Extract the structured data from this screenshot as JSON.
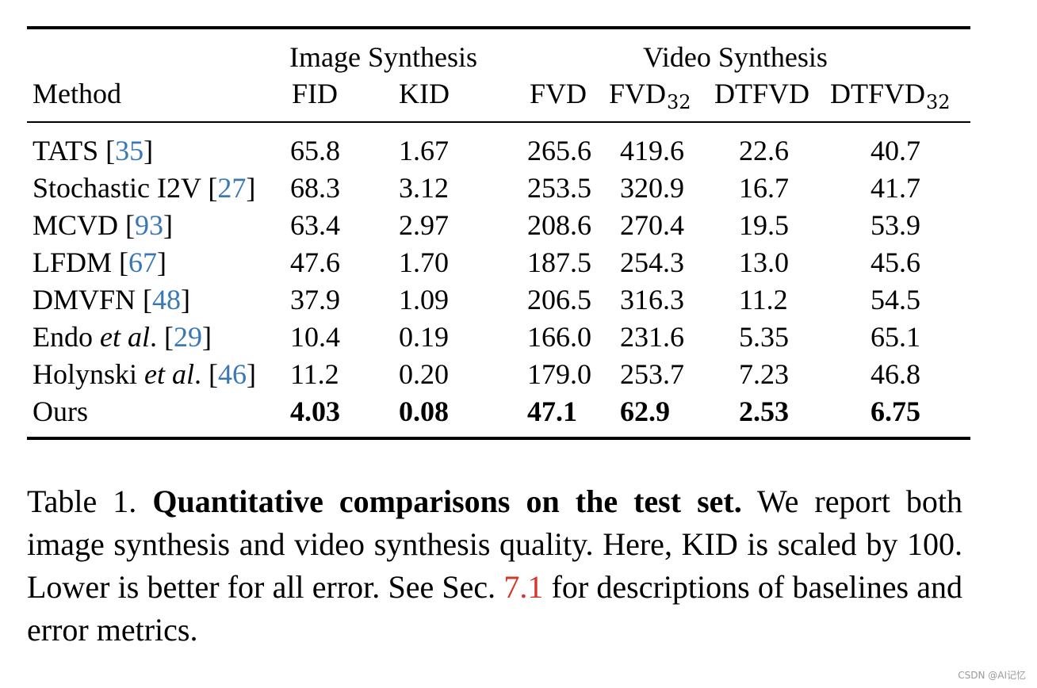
{
  "table": {
    "group_headers": {
      "image": "Image Synthesis",
      "video": "Video Synthesis"
    },
    "columns": {
      "method": "Method",
      "fid": "FID",
      "kid": "KID",
      "fvd": "FVD",
      "fvd32": {
        "base": "FVD",
        "sub": "32"
      },
      "dtfvd": "DTFVD",
      "dtfvd32": {
        "base": "DTFVD",
        "sub": "32"
      }
    },
    "rows": [
      {
        "name": "TATS ",
        "ital": "",
        "post": "",
        "ref": "35",
        "fid": "65.8",
        "kid": "1.67",
        "fvd": "265.6",
        "fvd32": "419.6",
        "dtfvd": "22.6",
        "dtfvd32": "40.7"
      },
      {
        "name": "Stochastic I2V ",
        "ital": "",
        "post": "",
        "ref": "27",
        "fid": "68.3",
        "kid": "3.12",
        "fvd": "253.5",
        "fvd32": "320.9",
        "dtfvd": "16.7",
        "dtfvd32": "41.7"
      },
      {
        "name": "MCVD ",
        "ital": "",
        "post": "",
        "ref": "93",
        "fid": "63.4",
        "kid": "2.97",
        "fvd": "208.6",
        "fvd32": "270.4",
        "dtfvd": "19.5",
        "dtfvd32": "53.9"
      },
      {
        "name": "LFDM ",
        "ital": "",
        "post": "",
        "ref": "67",
        "fid": "47.6",
        "kid": "1.70",
        "fvd": "187.5",
        "fvd32": "254.3",
        "dtfvd": "13.0",
        "dtfvd32": "45.6"
      },
      {
        "name": "DMVFN ",
        "ital": "",
        "post": "",
        "ref": "48",
        "fid": "37.9",
        "kid": "1.09",
        "fvd": "206.5",
        "fvd32": "316.3",
        "dtfvd": "11.2",
        "dtfvd32": "54.5"
      },
      {
        "name": "Endo ",
        "ital": "et al",
        "post": ". ",
        "ref": "29",
        "fid": "10.4",
        "kid": "0.19",
        "fvd": "166.0",
        "fvd32": "231.6",
        "dtfvd": "5.35",
        "dtfvd32": "65.1"
      },
      {
        "name": "Holynski ",
        "ital": "et al",
        "post": ". ",
        "ref": "46",
        "fid": "11.2",
        "kid": "0.20",
        "fvd": "179.0",
        "fvd32": "253.7",
        "dtfvd": "7.23",
        "dtfvd32": "46.8"
      },
      {
        "name": "Ours",
        "ital": "",
        "post": "",
        "ref": "",
        "fid": "4.03",
        "kid": "0.08",
        "fvd": "47.1",
        "fvd32": "62.9",
        "dtfvd": "2.53",
        "dtfvd32": "6.75",
        "bold": true
      }
    ]
  },
  "caption": {
    "label": "Table 1.",
    "bold": "Quantitative comparisons on the test set.",
    "text_before_ref": "We report both image synthesis and video synthesis quality. Here, KID is scaled by 100. Lower is better for all error. See Sec.",
    "ref": "7.1",
    "text_after_ref": "for descriptions of baselines and error metrics."
  },
  "watermark": "CSDN @AI记忆",
  "colors": {
    "citation": "#3a78b5",
    "section_ref": "#d5352b"
  }
}
